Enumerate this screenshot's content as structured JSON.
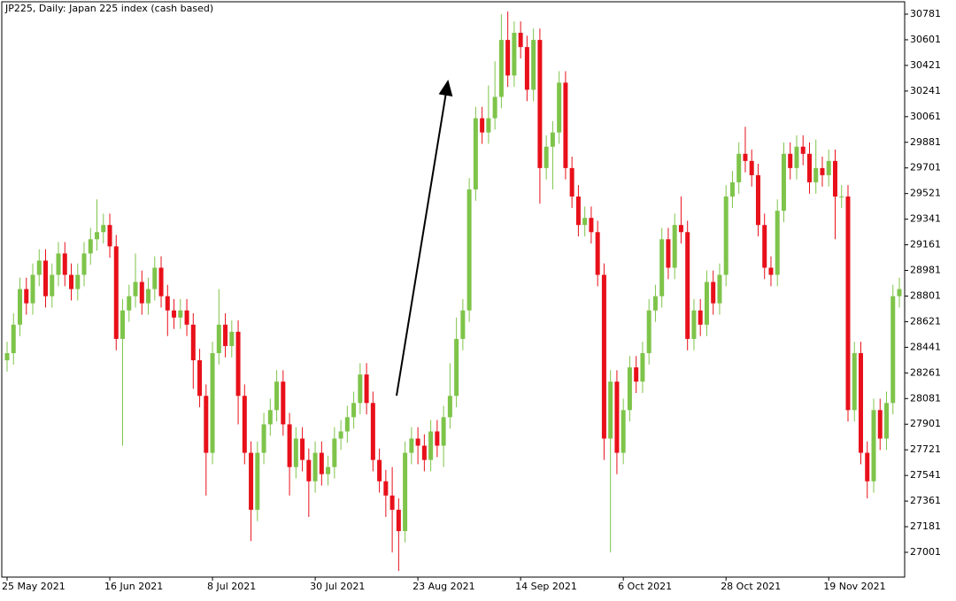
{
  "chart_data": {
    "type": "candlestick",
    "title": "JP225, Daily:  Japan 225 index (cash based)",
    "categories": [
      "25 May 2021",
      null,
      null,
      null,
      null,
      null,
      null,
      null,
      null,
      null,
      null,
      null,
      null,
      null,
      null,
      null,
      "16 Jun 2021",
      null,
      null,
      null,
      null,
      null,
      null,
      null,
      null,
      null,
      null,
      null,
      null,
      null,
      null,
      null,
      "8 Jul 2021",
      null,
      null,
      null,
      null,
      null,
      null,
      null,
      null,
      null,
      null,
      null,
      null,
      null,
      null,
      null,
      "30 Jul 2021",
      null,
      null,
      null,
      null,
      null,
      null,
      null,
      null,
      null,
      null,
      null,
      null,
      null,
      null,
      null,
      "23 Aug 2021",
      null,
      null,
      null,
      null,
      null,
      null,
      null,
      null,
      null,
      null,
      null,
      null,
      null,
      null,
      null,
      "14 Sep 2021",
      null,
      null,
      null,
      null,
      null,
      null,
      null,
      null,
      null,
      null,
      null,
      null,
      null,
      null,
      null,
      "6 Oct 2021",
      null,
      null,
      null,
      null,
      null,
      null,
      null,
      null,
      null,
      null,
      null,
      null,
      null,
      null,
      null,
      "28 Oct 2021",
      null,
      null,
      null,
      null,
      null,
      null,
      null,
      null,
      null,
      null,
      null,
      null,
      null,
      null,
      null,
      "19 Nov 2021",
      null,
      null,
      null,
      null,
      null,
      null,
      null,
      null,
      null,
      null,
      null
    ],
    "open": [
      28350,
      28400,
      28600,
      28850,
      28750,
      28950,
      29050,
      28800,
      28950,
      29100,
      28950,
      28850,
      28950,
      29100,
      29200,
      29250,
      29300,
      29150,
      28500,
      28700,
      28800,
      28900,
      28750,
      28850,
      29000,
      28800,
      28700,
      28650,
      28700,
      28600,
      28350,
      28100,
      27700,
      28400,
      28600,
      28450,
      28550,
      28100,
      27700,
      27300,
      27700,
      27900,
      28000,
      28200,
      27900,
      27600,
      27800,
      27650,
      27500,
      27700,
      27550,
      27600,
      27800,
      27850,
      27950,
      28050,
      28250,
      28050,
      27650,
      27500,
      27400,
      27300,
      27150,
      27700,
      27800,
      27750,
      27650,
      27850,
      27750,
      27950,
      28100,
      28500,
      28700,
      29550,
      30050,
      29950,
      30050,
      30200,
      30600,
      30350,
      30650,
      30550,
      30250,
      30600,
      29700,
      29850,
      29950,
      30300,
      29700,
      29500,
      29300,
      29350,
      29250,
      28950,
      27800,
      28200,
      27700,
      28000,
      28300,
      28200,
      28400,
      28700,
      28800,
      29200,
      29000,
      29300,
      29250,
      28500,
      28700,
      28600,
      28900,
      28750,
      28950,
      29500,
      29600,
      29800,
      29750,
      29650,
      29300,
      29000,
      28950,
      29400,
      29800,
      29700,
      29850,
      29800,
      29600,
      29700,
      29650,
      29750,
      29500,
      29500,
      28000,
      28400,
      27700,
      27500,
      28000,
      27800,
      28050,
      28800
    ],
    "high": [
      28480,
      28680,
      28930,
      28930,
      29030,
      29130,
      29130,
      29030,
      29180,
      29180,
      29030,
      29030,
      29180,
      29280,
      29480,
      29380,
      29380,
      29230,
      28780,
      28880,
      29100,
      28980,
      28930,
      29080,
      29080,
      28880,
      28780,
      28780,
      28780,
      28680,
      28430,
      28180,
      28480,
      28850,
      28680,
      28630,
      28630,
      28180,
      27780,
      27780,
      27980,
      28080,
      28280,
      28280,
      27980,
      27880,
      27880,
      27730,
      27780,
      27780,
      27680,
      27880,
      27930,
      28030,
      28130,
      28330,
      28330,
      28130,
      27730,
      27580,
      27600,
      27380,
      27780,
      27880,
      27880,
      27830,
      27930,
      27930,
      28030,
      28330,
      28650,
      28780,
      29630,
      30130,
      30130,
      30280,
      30450,
      30780,
      30800,
      30730,
      30730,
      30630,
      30680,
      30680,
      29930,
      30030,
      30380,
      30380,
      29780,
      29580,
      29430,
      29430,
      29330,
      29030,
      28280,
      28280,
      28080,
      28380,
      28380,
      28480,
      28780,
      28880,
      29280,
      29280,
      29380,
      29500,
      29330,
      28780,
      28780,
      28980,
      28980,
      29030,
      29580,
      29680,
      29880,
      29990,
      29830,
      29730,
      29380,
      29080,
      29480,
      29880,
      29880,
      29930,
      29930,
      29880,
      29900,
      29780,
      29830,
      29830,
      29580,
      29580,
      28480,
      28480,
      27780,
      28080,
      28080,
      28130,
      28880,
      28930
    ],
    "low": [
      28270,
      28320,
      28520,
      28670,
      28670,
      28870,
      28720,
      28720,
      28870,
      28870,
      28770,
      28770,
      28870,
      29020,
      29120,
      29170,
      29070,
      28420,
      27750,
      28620,
      28720,
      28670,
      28670,
      28770,
      28720,
      28520,
      28570,
      28570,
      28520,
      28150,
      28020,
      27400,
      27620,
      28320,
      28370,
      28370,
      27900,
      27620,
      27080,
      27220,
      27620,
      27820,
      27920,
      27820,
      27400,
      27520,
      27570,
      27250,
      27420,
      27470,
      27470,
      27520,
      27720,
      27770,
      27870,
      27970,
      27970,
      27570,
      27420,
      27250,
      27000,
      26870,
      27070,
      27620,
      27620,
      27570,
      27570,
      27670,
      27600,
      27870,
      28020,
      28420,
      28620,
      29470,
      29870,
      29870,
      29970,
      30120,
      30270,
      30270,
      30470,
      30170,
      30170,
      29450,
      29620,
      29550,
      29870,
      29620,
      29420,
      29220,
      29220,
      29170,
      28870,
      27650,
      27000,
      27550,
      27620,
      27920,
      28120,
      28120,
      28320,
      28620,
      28720,
      28920,
      28920,
      29170,
      28420,
      28420,
      28520,
      28520,
      28670,
      28670,
      28870,
      29420,
      29520,
      29670,
      29570,
      29220,
      28920,
      28870,
      28870,
      29320,
      29620,
      29620,
      29720,
      29520,
      29520,
      29570,
      29570,
      29200,
      29420,
      27920,
      27920,
      27620,
      27380,
      27420,
      27720,
      27720,
      27970,
      28720
    ],
    "close": [
      28400,
      28600,
      28850,
      28750,
      28950,
      29050,
      28800,
      28950,
      29100,
      28950,
      28850,
      28950,
      29100,
      29200,
      29250,
      29300,
      29150,
      28500,
      28700,
      28800,
      28900,
      28750,
      28850,
      29000,
      28800,
      28700,
      28650,
      28700,
      28600,
      28350,
      28100,
      27700,
      28400,
      28600,
      28450,
      28550,
      28100,
      27700,
      27300,
      27700,
      27900,
      28000,
      28200,
      27900,
      27600,
      27800,
      27650,
      27500,
      27700,
      27550,
      27600,
      27800,
      27850,
      27950,
      28050,
      28250,
      28050,
      27650,
      27500,
      27400,
      27300,
      27150,
      27700,
      27800,
      27750,
      27650,
      27850,
      27750,
      27950,
      28100,
      28500,
      28700,
      29550,
      30050,
      29950,
      30050,
      30200,
      30600,
      30350,
      30650,
      30550,
      30250,
      30600,
      29700,
      29850,
      29950,
      30300,
      29700,
      29500,
      29300,
      29350,
      29250,
      28950,
      27800,
      28200,
      27700,
      28000,
      28300,
      28200,
      28400,
      28700,
      28800,
      29200,
      29000,
      29300,
      29250,
      28500,
      28700,
      28600,
      28900,
      28750,
      28950,
      29500,
      29600,
      29800,
      29750,
      29650,
      29300,
      29000,
      28950,
      29400,
      29800,
      29700,
      29850,
      29800,
      29600,
      29700,
      29650,
      29750,
      29500,
      29500,
      28000,
      28400,
      27700,
      27500,
      28000,
      27800,
      28050,
      28800,
      28850
    ],
    "up_color": "#7ec44a",
    "down_color": "#e8101a",
    "ylim": [
      26827,
      30868
    ],
    "yticks": [
      30781,
      30601,
      30421,
      30241,
      30061,
      29881,
      29701,
      29521,
      29341,
      29161,
      28981,
      28801,
      28621,
      28441,
      28261,
      28081,
      27901,
      27721,
      27541,
      27361,
      27181,
      27001
    ]
  }
}
